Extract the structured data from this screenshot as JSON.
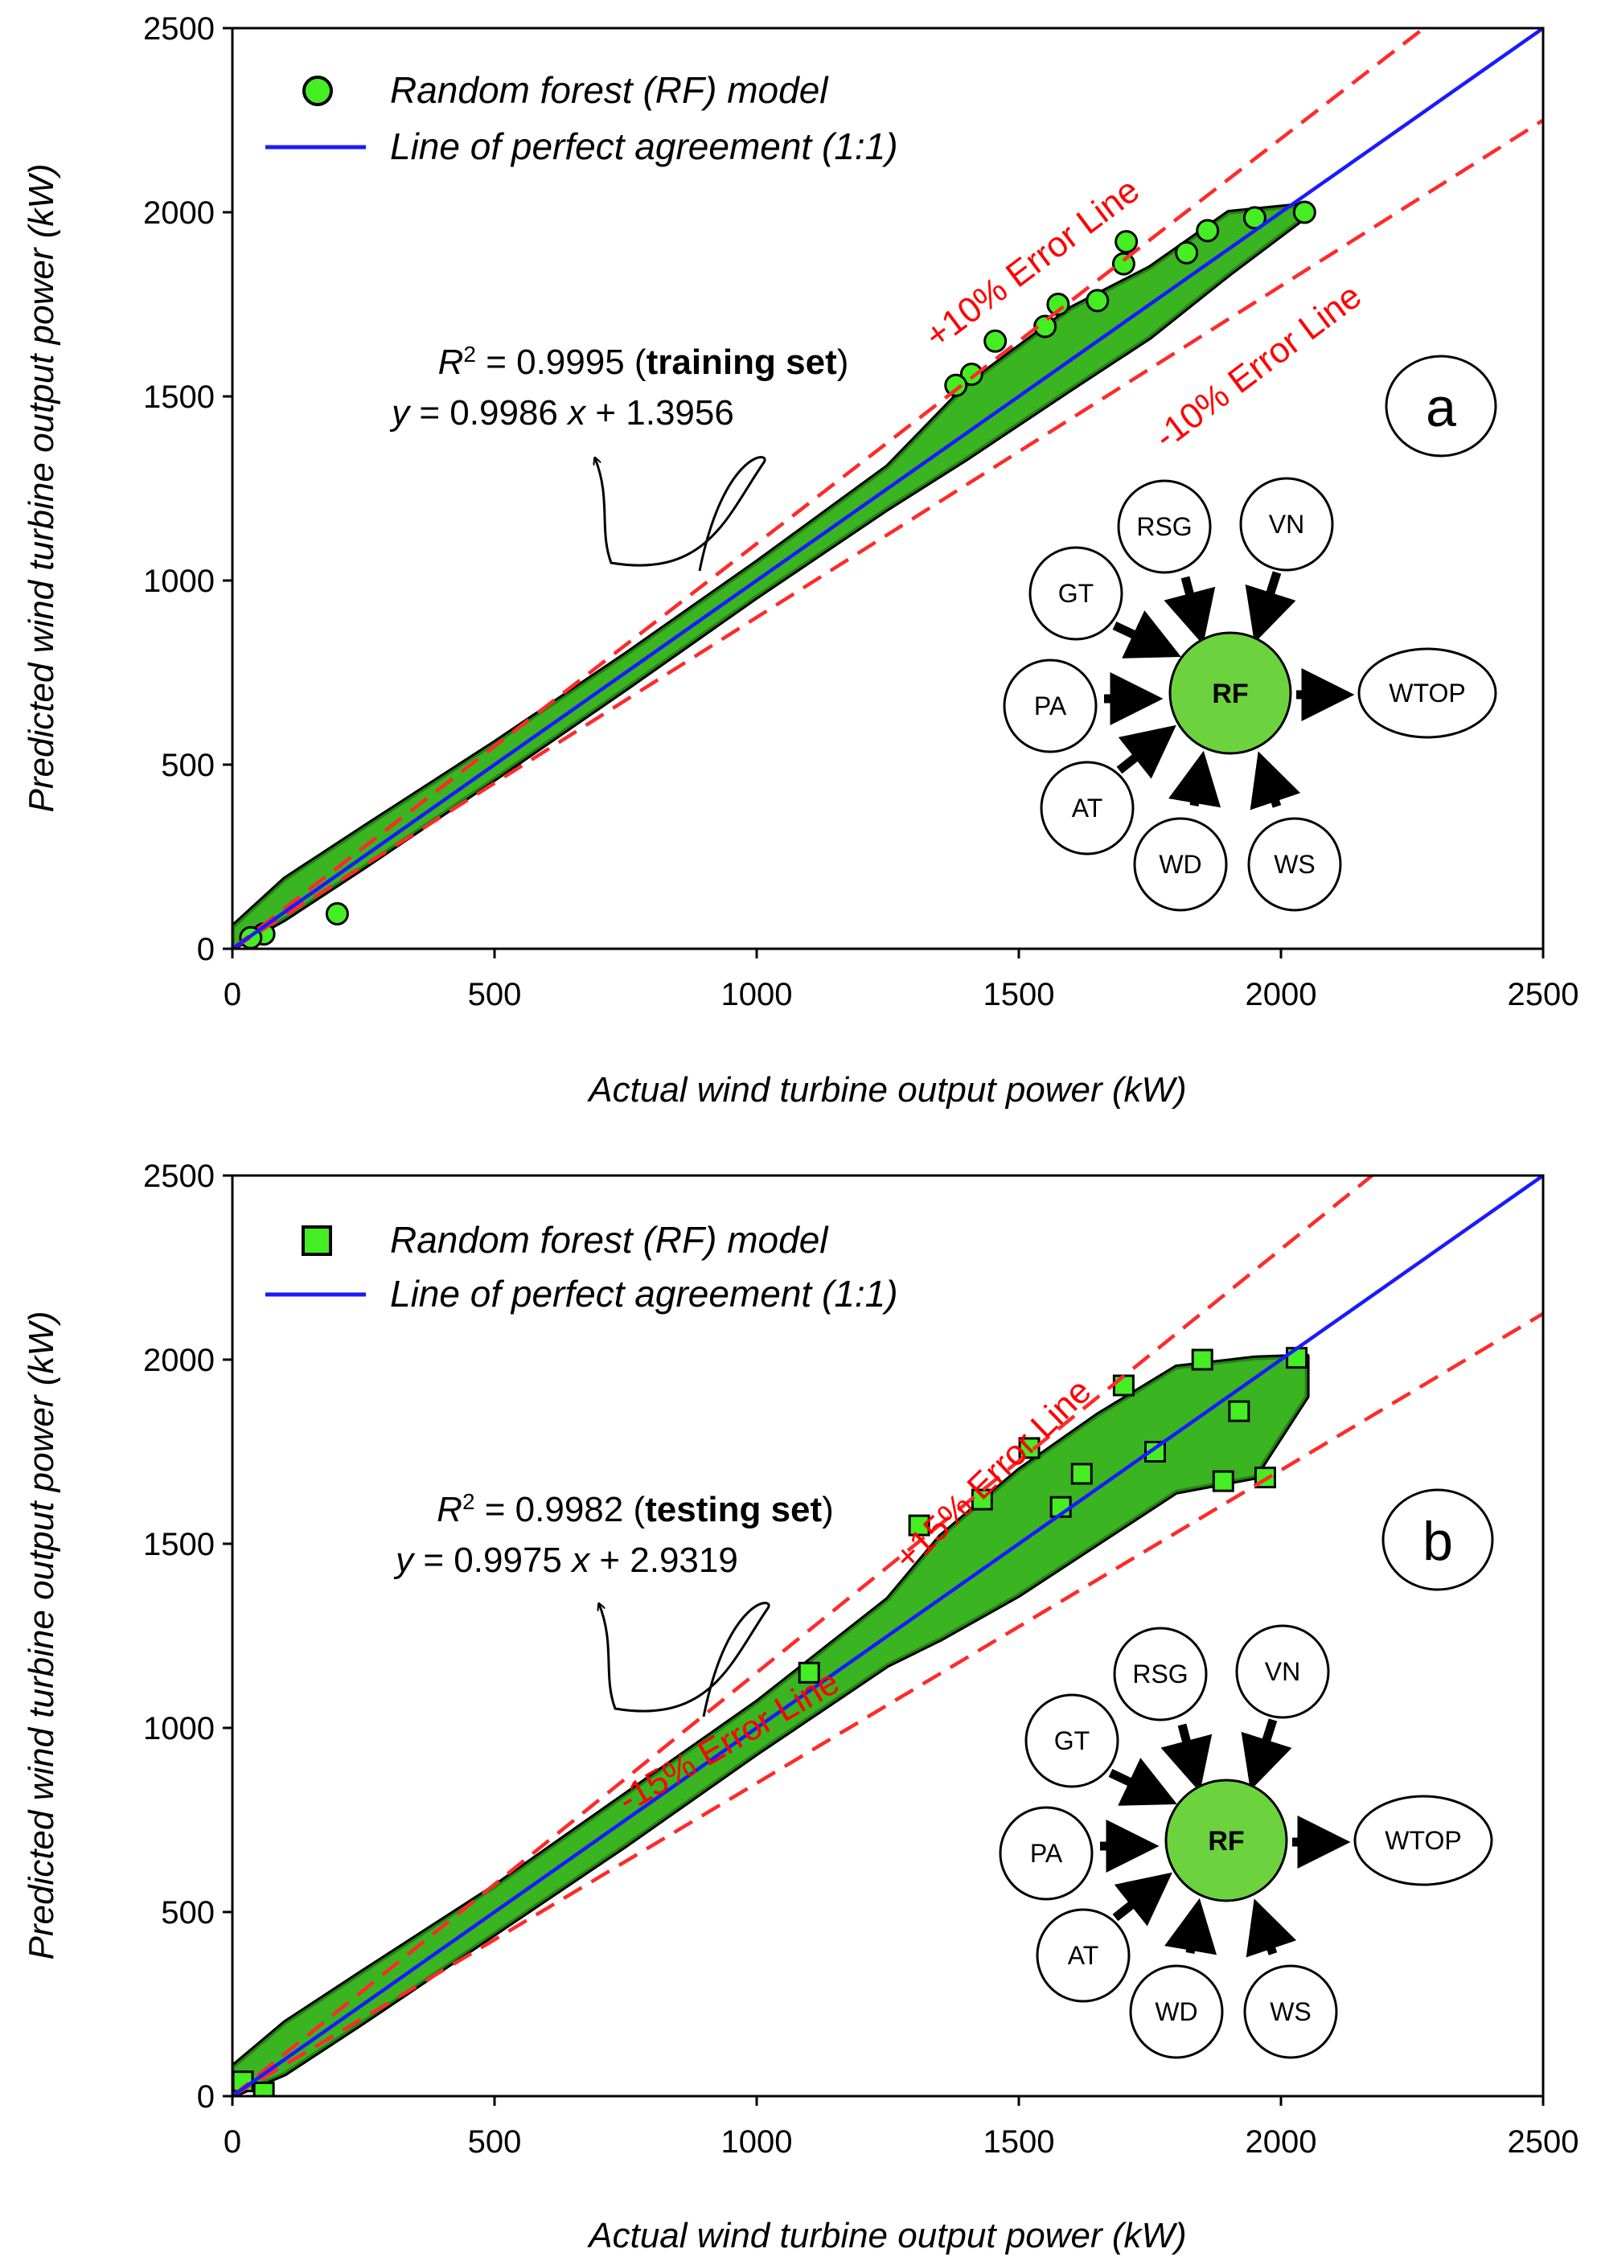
{
  "colors": {
    "marker_fill": "#44ee22",
    "marker_edge": "#000000",
    "perfect_line": "#1a1aff",
    "error_line": "#ff2a2a",
    "error_text": "#ff0000",
    "rf_node": "#6cd33f"
  },
  "chart_data": [
    {
      "type": "scatter",
      "panel": "a",
      "marker": "circle",
      "xlabel": "Actual wind turbine output power (kW)",
      "ylabel": "Predicted wind turbine output power (kW)",
      "xlim": [
        0,
        2500
      ],
      "ylim": [
        0,
        2500
      ],
      "xticks": [
        0,
        500,
        1000,
        1500,
        2000,
        2500
      ],
      "yticks": [
        0,
        500,
        1000,
        1500,
        2000,
        2500
      ],
      "legend": {
        "placement": "top-left",
        "scatter_label": "Random forest (RF) model",
        "line_label": "Line of perfect agreement (1:1)"
      },
      "error_band": {
        "percent": 10,
        "upper_label": "+10% Error Line",
        "lower_label": "-10% Error Line"
      },
      "stats": {
        "r2_prefix": "R",
        "r2_sup": "2",
        "r2_value": " = 0.9995 (",
        "set_label": "training set",
        "r2_close": ")",
        "eq_y": "y",
        "eq_mid": " = 0.9986 ",
        "eq_x": "x",
        "eq_tail": " + 1.3956"
      },
      "diagram": {
        "inputs": [
          "GT",
          "RSG",
          "VN",
          "PA",
          "AT",
          "WD",
          "WS"
        ],
        "model": "RF",
        "output": "WTOP"
      },
      "envelope": [
        {
          "x": 0,
          "lo": 0,
          "hi": 60
        },
        {
          "x": 100,
          "lo": 80,
          "hi": 190
        },
        {
          "x": 250,
          "lo": 220,
          "hi": 330
        },
        {
          "x": 500,
          "lo": 460,
          "hi": 560
        },
        {
          "x": 750,
          "lo": 705,
          "hi": 800
        },
        {
          "x": 1000,
          "lo": 955,
          "hi": 1050
        },
        {
          "x": 1250,
          "lo": 1195,
          "hi": 1310
        },
        {
          "x": 1400,
          "lo": 1330,
          "hi": 1530
        },
        {
          "x": 1600,
          "lo": 1520,
          "hi": 1740
        },
        {
          "x": 1750,
          "lo": 1660,
          "hi": 1850
        },
        {
          "x": 1900,
          "lo": 1830,
          "hi": 2000
        },
        {
          "x": 2040,
          "lo": 1980,
          "hi": 2020
        }
      ],
      "points": [
        [
          1705,
          1920
        ],
        [
          1700,
          1860
        ],
        [
          1575,
          1750
        ],
        [
          1455,
          1650
        ],
        [
          1410,
          1560
        ],
        [
          1380,
          1530
        ],
        [
          200,
          95
        ],
        [
          60,
          40
        ],
        [
          35,
          30
        ],
        [
          2045,
          2000
        ],
        [
          1860,
          1950
        ],
        [
          1950,
          1985
        ],
        [
          1820,
          1890
        ],
        [
          1650,
          1760
        ],
        [
          1550,
          1690
        ]
      ]
    },
    {
      "type": "scatter",
      "panel": "b",
      "marker": "square",
      "xlabel": "Actual wind turbine output power (kW)",
      "ylabel": "Predicted wind turbine output power (kW)",
      "xlim": [
        0,
        2500
      ],
      "ylim": [
        0,
        2500
      ],
      "xticks": [
        0,
        500,
        1000,
        1500,
        2000,
        2500
      ],
      "yticks": [
        0,
        500,
        1000,
        1500,
        2000,
        2500
      ],
      "legend": {
        "placement": "top-left",
        "scatter_label": "Random forest (RF) model",
        "line_label": "Line of perfect agreement (1:1)"
      },
      "error_band": {
        "percent": 15,
        "upper_label": "+15% Error Line",
        "lower_label": "-15% Error Line"
      },
      "stats": {
        "r2_prefix": "R",
        "r2_sup": "2",
        "r2_value": " = 0.9982 (",
        "set_label": "testing set",
        "r2_close": ")",
        "eq_y": "y",
        "eq_mid": " = 0.9975 ",
        "eq_x": "x",
        "eq_tail": " + 2.9319"
      },
      "diagram": {
        "inputs": [
          "GT",
          "RSG",
          "VN",
          "PA",
          "AT",
          "WD",
          "WS"
        ],
        "model": "RF",
        "output": "WTOP"
      },
      "envelope": [
        {
          "x": 0,
          "lo": 0,
          "hi": 80
        },
        {
          "x": 100,
          "lo": 60,
          "hi": 200
        },
        {
          "x": 250,
          "lo": 200,
          "hi": 340
        },
        {
          "x": 500,
          "lo": 440,
          "hi": 570
        },
        {
          "x": 750,
          "lo": 680,
          "hi": 820
        },
        {
          "x": 1000,
          "lo": 930,
          "hi": 1070
        },
        {
          "x": 1250,
          "lo": 1170,
          "hi": 1350
        },
        {
          "x": 1350,
          "lo": 1240,
          "hi": 1520
        },
        {
          "x": 1500,
          "lo": 1360,
          "hi": 1700
        },
        {
          "x": 1650,
          "lo": 1500,
          "hi": 1850
        },
        {
          "x": 1800,
          "lo": 1640,
          "hi": 1980
        },
        {
          "x": 1950,
          "lo": 1680,
          "hi": 2005
        },
        {
          "x": 2050,
          "lo": 1900,
          "hi": 2010
        }
      ],
      "points": [
        [
          1970,
          1680
        ],
        [
          1890,
          1670
        ],
        [
          1310,
          1550
        ],
        [
          1520,
          1760
        ],
        [
          1620,
          1690
        ],
        [
          60,
          10
        ],
        [
          20,
          40
        ],
        [
          2030,
          2005
        ],
        [
          1700,
          1930
        ],
        [
          1850,
          2000
        ],
        [
          1430,
          1620
        ],
        [
          1580,
          1600
        ],
        [
          1760,
          1750
        ],
        [
          1920,
          1860
        ],
        [
          1100,
          1150
        ]
      ]
    }
  ]
}
